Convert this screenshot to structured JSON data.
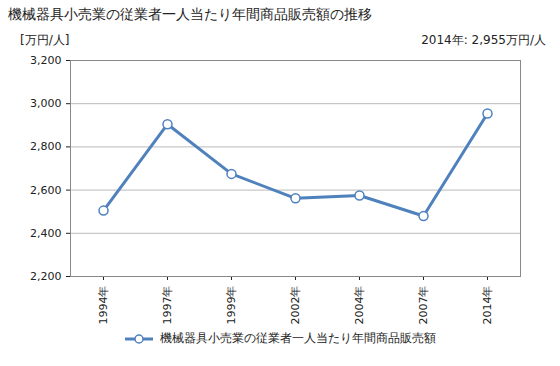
{
  "chart_data": {
    "type": "line",
    "title": "機械器具小売業の従業者一人当たり年間商品販売額の推移",
    "y_label": "[万円/人]",
    "annotation": "2014年: 2,955万円/人",
    "categories": [
      "1994年",
      "1997年",
      "1999年",
      "2002年",
      "2004年",
      "2007年",
      "2014年"
    ],
    "series": [
      {
        "name": "機械器具小売業の従業者一人当たり年間商品販売額",
        "color": "#4f81bd",
        "marker": "circle",
        "values": [
          2505,
          2905,
          2675,
          2562,
          2575,
          2480,
          2955
        ]
      }
    ],
    "ylim": [
      2200,
      3200
    ],
    "yticks": [
      {
        "value": 2200,
        "label": "2,200"
      },
      {
        "value": 2400,
        "label": "2,400"
      },
      {
        "value": 2600,
        "label": "2,600"
      },
      {
        "value": 2800,
        "label": "2,800"
      },
      {
        "value": 3000,
        "label": "3,000"
      },
      {
        "value": 3200,
        "label": "3,200"
      }
    ],
    "grid": true,
    "legend": "bottom"
  }
}
